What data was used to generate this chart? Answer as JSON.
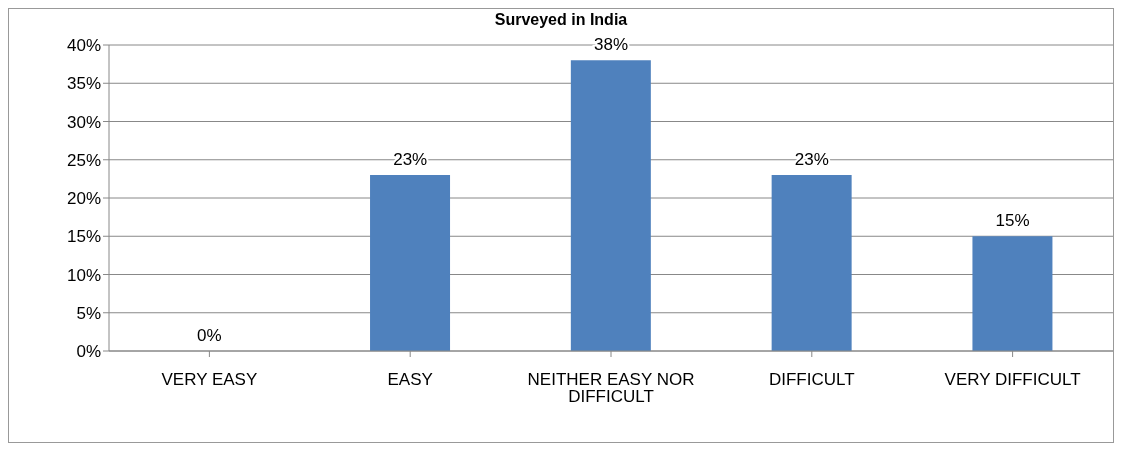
{
  "chart_data": {
    "type": "bar",
    "title": "Surveyed in India",
    "categories": [
      "VERY EASY",
      "EASY",
      "NEITHER EASY NOR DIFFICULT",
      "DIFFICULT",
      "VERY DIFFICULT"
    ],
    "values": [
      0,
      23,
      38,
      23,
      15
    ],
    "value_labels": [
      "0%",
      "23%",
      "38%",
      "23%",
      "15%"
    ],
    "color": "#4f81bd",
    "ylim": [
      0,
      40
    ],
    "yticks": [
      {
        "value": 0,
        "label": "0%"
      },
      {
        "value": 5,
        "label": "5%"
      },
      {
        "value": 10,
        "label": "10%"
      },
      {
        "value": 15,
        "label": "15%"
      },
      {
        "value": 20,
        "label": "20%"
      },
      {
        "value": 25,
        "label": "25%"
      },
      {
        "value": 30,
        "label": "30%"
      },
      {
        "value": 35,
        "label": "35%"
      },
      {
        "value": 40,
        "label": "40%"
      }
    ],
    "grid": "y",
    "legend": false
  }
}
